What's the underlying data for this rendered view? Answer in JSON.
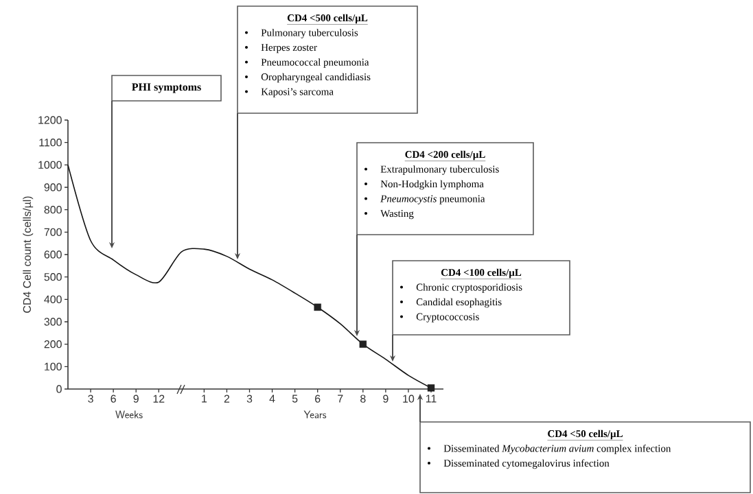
{
  "chart_data": {
    "type": "line",
    "ylabel": "CD4 Cell count (cells/µl)",
    "categories": [
      null,
      "3",
      "6",
      "9",
      "12",
      null,
      "1",
      "2",
      "3",
      "4",
      "5",
      "6",
      "7",
      "8",
      "9",
      "10",
      "11"
    ],
    "series": [
      {
        "color": "#111111",
        "values": [
          1000,
          662,
          576,
          510,
          477,
          612,
          624,
          592,
          535,
          487,
          428,
          365,
          291,
          200,
          133,
          61,
          5
        ]
      },
      {
        "type": "scatter",
        "marker": "square",
        "color": "#222222",
        "values": [
          null,
          null,
          null,
          null,
          null,
          null,
          null,
          null,
          null,
          null,
          null,
          365,
          null,
          200,
          null,
          null,
          5
        ]
      }
    ],
    "ylim": [
      0,
      1200
    ],
    "yticks": [
      0,
      100,
      200,
      300,
      400,
      500,
      600,
      700,
      800,
      900,
      1000,
      1100,
      1200
    ],
    "annotations": [
      "Weeks",
      "Years",
      "PHI symptoms",
      "CD4 <500 cells/µL",
      "Pulmonary tuberculosis",
      "Herpes zoster",
      "Pneumococcal pneumonia",
      "Oropharyngeal candidiasis",
      "Kaposi’s sarcoma",
      "CD4 <200 cells/µL",
      "Extrapulmonary tuberculosis",
      "Non-Hodgkin lymphoma",
      "*Pneumocystis* pneumonia",
      "Wasting",
      "CD4 <100 cells/µL",
      "Chronic cryptosporidiosis",
      "Candidal esophagitis",
      "Cryptococcosis",
      "CD4 <50 cells/µL",
      "Disseminated *Mycobacterium avium* complex infection",
      "Disseminated cytomegalovirus infection"
    ]
  }
}
